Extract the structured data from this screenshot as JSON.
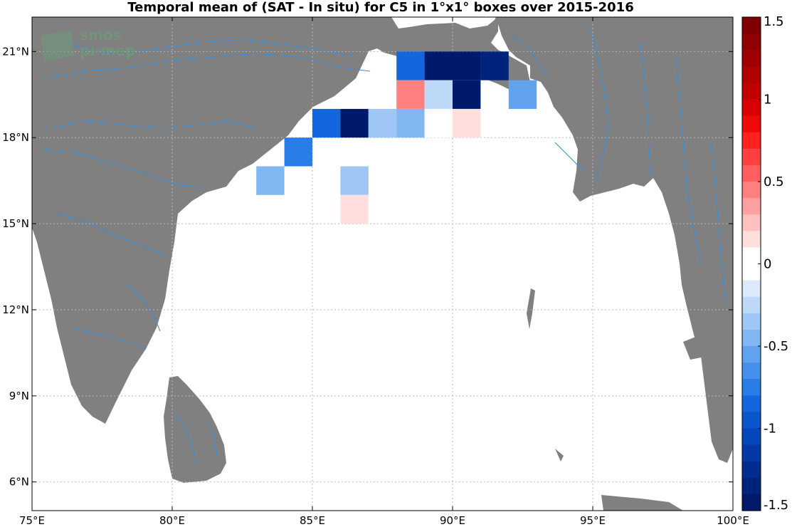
{
  "title": "Temporal mean of (SAT - In situ) for C5 in 1°x1° boxes over 2015-2016",
  "logo": {
    "line1": "smos",
    "line2": "pi-mep"
  },
  "colors": {
    "land": "#808080",
    "river": "#3a8fd8",
    "ocean": "#ffffff",
    "grid": "#b8b8b8",
    "frame": "#000000"
  },
  "map": {
    "lon_range": [
      75,
      100
    ],
    "lat_range": [
      5,
      22.2
    ],
    "lon_ticks": [
      {
        "value": 75,
        "label": "75°E"
      },
      {
        "value": 80,
        "label": "80°E"
      },
      {
        "value": 85,
        "label": "85°E"
      },
      {
        "value": 90,
        "label": "90°E"
      },
      {
        "value": 95,
        "label": "95°E"
      },
      {
        "value": 100,
        "label": "100°E"
      }
    ],
    "lat_ticks": [
      {
        "value": 6,
        "label": "6°N"
      },
      {
        "value": 9,
        "label": "9°N"
      },
      {
        "value": 12,
        "label": "12°N"
      },
      {
        "value": 15,
        "label": "15°N"
      },
      {
        "value": 18,
        "label": "18°N"
      },
      {
        "value": 21,
        "label": "21°N"
      }
    ]
  },
  "colorbar": {
    "min": -1.5,
    "max": 1.5,
    "ticks": [
      {
        "value": 1.5,
        "label": "1.5"
      },
      {
        "value": 1,
        "label": "1"
      },
      {
        "value": 0.5,
        "label": "0.5"
      },
      {
        "value": 0,
        "label": "0"
      },
      {
        "value": -0.5,
        "label": "-0.5"
      },
      {
        "value": -1,
        "label": "-1"
      },
      {
        "value": -1.5,
        "label": "-1.5"
      }
    ],
    "colors_top_to_bottom": [
      "#7f0000",
      "#8f0000",
      "#a00000",
      "#b00000",
      "#c30000",
      "#d80000",
      "#ee0a0a",
      "#ff2020",
      "#ff4040",
      "#ff5f5f",
      "#ff8080",
      "#ffa0a0",
      "#ffc0c0",
      "#ffdede",
      "#ffffff",
      "#ffffff",
      "#dce9fb",
      "#bed8f8",
      "#9fc7f5",
      "#82b6f2",
      "#61a2ee",
      "#4590ea",
      "#2a7ce6",
      "#1466de",
      "#0b55cd",
      "#0646bb",
      "#0239a5",
      "#002c8f",
      "#00237b",
      "#001a6a"
    ]
  },
  "chart_data": {
    "type": "heatmap",
    "title": "Temporal mean of (SAT - In situ) for C5 in 1°x1° boxes over 2015-2016",
    "cell_size_deg": 1,
    "cells": [
      {
        "lon": 88,
        "lat": 20,
        "value": -0.85
      },
      {
        "lon": 89,
        "lat": 20,
        "value": -1.5
      },
      {
        "lon": 90,
        "lat": 20,
        "value": -1.5
      },
      {
        "lon": 91,
        "lat": 20,
        "value": -1.35
      },
      {
        "lon": 88,
        "lat": 19,
        "value": 0.45
      },
      {
        "lon": 89,
        "lat": 19,
        "value": -0.25
      },
      {
        "lon": 90,
        "lat": 19,
        "value": -1.5
      },
      {
        "lon": 92,
        "lat": 19,
        "value": -0.55
      },
      {
        "lon": 85,
        "lat": 18,
        "value": -0.85
      },
      {
        "lon": 86,
        "lat": 18,
        "value": -1.5
      },
      {
        "lon": 87,
        "lat": 18,
        "value": -0.3
      },
      {
        "lon": 88,
        "lat": 18,
        "value": -0.45
      },
      {
        "lon": 89,
        "lat": 18,
        "value": 0.05
      },
      {
        "lon": 90,
        "lat": 18,
        "value": 0.15
      },
      {
        "lon": 84,
        "lat": 17,
        "value": -0.7
      },
      {
        "lon": 83,
        "lat": 16,
        "value": -0.45
      },
      {
        "lon": 86,
        "lat": 16,
        "value": -0.3
      },
      {
        "lon": 86,
        "lat": 15,
        "value": 0.15
      }
    ]
  }
}
